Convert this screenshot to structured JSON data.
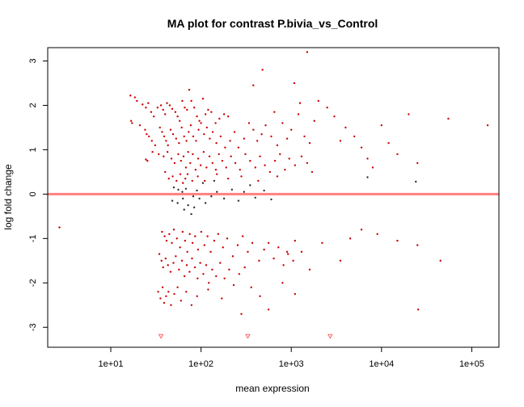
{
  "chart_data": {
    "type": "scatter",
    "title": "MA plot for contrast P.bivia_vs_Control",
    "xlabel": "mean expression",
    "ylabel": "log fold change",
    "x_scale": "log10",
    "xlim": [
      2,
      200000
    ],
    "ylim": [
      -3.45,
      3.3
    ],
    "x_ticks": [
      10,
      100,
      1000,
      10000,
      100000
    ],
    "x_tick_labels": [
      "1e+01",
      "1e+02",
      "1e+03",
      "1e+04",
      "1e+05"
    ],
    "y_ticks": [
      -3,
      -2,
      -1,
      0,
      1,
      2,
      3
    ],
    "y_tick_labels": [
      "-3",
      "-2",
      "-1",
      "0",
      "1",
      "2",
      "3"
    ],
    "hline": {
      "y": 0,
      "color": "#ff7f7f"
    },
    "colors": {
      "significant": "#cc0000",
      "not_significant": "#333333",
      "axis": "#000000"
    },
    "series": [
      {
        "points": [
          [
            16.5,
            2.22
          ],
          [
            18.5,
            2.18
          ],
          [
            19.5,
            2.1
          ],
          [
            22.5,
            2.02
          ],
          [
            24.5,
            1.95
          ],
          [
            26,
            2.05
          ],
          [
            28,
            1.85
          ],
          [
            30,
            1.75
          ],
          [
            33,
            1.95
          ],
          [
            36,
            2.0
          ],
          [
            38,
            1.9
          ],
          [
            40,
            1.8
          ],
          [
            42,
            2.05
          ],
          [
            45,
            2.0
          ],
          [
            48,
            1.92
          ],
          [
            52,
            1.85
          ],
          [
            55,
            1.75
          ],
          [
            58,
            1.65
          ],
          [
            62,
            2.1
          ],
          [
            66,
            1.95
          ],
          [
            70,
            1.9
          ],
          [
            74,
            2.35
          ],
          [
            78,
            2.1
          ],
          [
            84,
            1.95
          ],
          [
            90,
            1.75
          ],
          [
            96,
            1.65
          ],
          [
            105,
            2.15
          ],
          [
            112,
            1.8
          ],
          [
            120,
            1.9
          ],
          [
            130,
            1.85
          ],
          [
            145,
            1.6
          ],
          [
            160,
            1.7
          ],
          [
            180,
            1.8
          ],
          [
            200,
            1.75
          ],
          [
            16.8,
            1.65
          ],
          [
            17.2,
            1.6
          ],
          [
            21,
            1.55
          ],
          [
            24,
            1.45
          ],
          [
            25,
            1.35
          ],
          [
            26.5,
            1.3
          ],
          [
            28.5,
            1.2
          ],
          [
            31,
            1.1
          ],
          [
            35,
            1.5
          ],
          [
            37,
            1.4
          ],
          [
            39,
            1.3
          ],
          [
            41,
            1.2
          ],
          [
            43,
            1.1
          ],
          [
            46,
            1.45
          ],
          [
            49,
            1.35
          ],
          [
            53,
            1.25
          ],
          [
            57,
            1.15
          ],
          [
            61,
            1.5
          ],
          [
            65,
            1.3
          ],
          [
            69,
            1.2
          ],
          [
            73,
            1.4
          ],
          [
            77,
            1.55
          ],
          [
            82,
            1.3
          ],
          [
            88,
            1.2
          ],
          [
            94,
            1.45
          ],
          [
            100,
            1.6
          ],
          [
            108,
            1.35
          ],
          [
            116,
            1.5
          ],
          [
            125,
            1.25
          ],
          [
            135,
            1.4
          ],
          [
            148,
            1.15
          ],
          [
            165,
            1.3
          ],
          [
            185,
            1.05
          ],
          [
            210,
            1.2
          ],
          [
            235,
            1.4
          ],
          [
            260,
            1.05
          ],
          [
            300,
            1.25
          ],
          [
            340,
            1.6
          ],
          [
            380,
            1.45
          ],
          [
            420,
            1.2
          ],
          [
            470,
            1.35
          ],
          [
            520,
            1.55
          ],
          [
            600,
            1.3
          ],
          [
            700,
            1.1
          ],
          [
            800,
            1.6
          ],
          [
            900,
            1.25
          ],
          [
            1000,
            1.45
          ],
          [
            1200,
            1.8
          ],
          [
            1400,
            1.3
          ],
          [
            1600,
            1.15
          ],
          [
            1800,
            1.65
          ],
          [
            24.5,
            0.78
          ],
          [
            25.5,
            0.75
          ],
          [
            29,
            0.95
          ],
          [
            34,
            0.9
          ],
          [
            38.5,
            0.85
          ],
          [
            42.5,
            0.95
          ],
          [
            47,
            0.8
          ],
          [
            51,
            0.7
          ],
          [
            56,
            0.9
          ],
          [
            60,
            0.75
          ],
          [
            64,
            0.85
          ],
          [
            68,
            0.6
          ],
          [
            72,
            0.95
          ],
          [
            76,
            0.7
          ],
          [
            81,
            0.9
          ],
          [
            87,
            0.55
          ],
          [
            93,
            0.8
          ],
          [
            99,
            0.65
          ],
          [
            107,
            0.95
          ],
          [
            115,
            0.6
          ],
          [
            124,
            0.85
          ],
          [
            134,
            0.7
          ],
          [
            146,
            0.55
          ],
          [
            158,
            0.9
          ],
          [
            172,
            0.75
          ],
          [
            190,
            0.6
          ],
          [
            215,
            0.85
          ],
          [
            240,
            0.7
          ],
          [
            270,
            0.55
          ],
          [
            310,
            0.9
          ],
          [
            350,
            0.75
          ],
          [
            400,
            0.6
          ],
          [
            450,
            0.85
          ],
          [
            510,
            0.65
          ],
          [
            580,
            0.5
          ],
          [
            660,
            0.75
          ],
          [
            750,
            0.9
          ],
          [
            850,
            0.55
          ],
          [
            950,
            0.8
          ],
          [
            1100,
            0.65
          ],
          [
            1300,
            0.85
          ],
          [
            1500,
            0.7
          ],
          [
            1700,
            0.5
          ],
          [
            40,
            0.5
          ],
          [
            44,
            0.35
          ],
          [
            48.5,
            0.4
          ],
          [
            53.5,
            0.3
          ],
          [
            59,
            0.45
          ],
          [
            63,
            0.25
          ],
          [
            67,
            0.35
          ],
          [
            71,
            0.45
          ],
          [
            80,
            0.3
          ],
          [
            92,
            0.4
          ],
          [
            110,
            0.3
          ],
          [
            150,
            0.45
          ],
          [
            200,
            0.35
          ],
          [
            280,
            0.4
          ],
          [
            430,
            0.3
          ],
          [
            700,
            0.4
          ],
          [
            37,
            -0.85
          ],
          [
            39.5,
            -0.95
          ],
          [
            41.5,
            -1.05
          ],
          [
            44.5,
            -0.9
          ],
          [
            47.5,
            -1.1
          ],
          [
            50,
            -0.8
          ],
          [
            54,
            -1.0
          ],
          [
            58.5,
            -1.2
          ],
          [
            62.5,
            -0.85
          ],
          [
            66.5,
            -1.05
          ],
          [
            70.5,
            -1.3
          ],
          [
            75,
            -0.9
          ],
          [
            80.5,
            -1.1
          ],
          [
            86,
            -0.95
          ],
          [
            92.5,
            -1.25
          ],
          [
            100.5,
            -0.85
          ],
          [
            109,
            -1.15
          ],
          [
            118,
            -0.95
          ],
          [
            128,
            -1.3
          ],
          [
            140,
            -1.05
          ],
          [
            155,
            -0.9
          ],
          [
            175,
            -1.2
          ],
          [
            195,
            -1.0
          ],
          [
            225,
            -1.4
          ],
          [
            255,
            -1.15
          ],
          [
            290,
            -0.95
          ],
          [
            330,
            -1.3
          ],
          [
            370,
            -1.1
          ],
          [
            440,
            -1.5
          ],
          [
            500,
            -1.25
          ],
          [
            560,
            -1.1
          ],
          [
            640,
            -1.45
          ],
          [
            720,
            -1.2
          ],
          [
            820,
            -1.6
          ],
          [
            920,
            -1.35
          ],
          [
            1050,
            -1.5
          ],
          [
            34.5,
            -1.35
          ],
          [
            36.5,
            -1.5
          ],
          [
            38,
            -1.65
          ],
          [
            40.5,
            -1.45
          ],
          [
            43,
            -1.6
          ],
          [
            46,
            -1.75
          ],
          [
            49.5,
            -1.55
          ],
          [
            52.5,
            -1.4
          ],
          [
            57,
            -1.7
          ],
          [
            61.5,
            -1.5
          ],
          [
            65.5,
            -1.85
          ],
          [
            69.5,
            -1.6
          ],
          [
            74.5,
            -1.75
          ],
          [
            79.5,
            -1.45
          ],
          [
            85.5,
            -1.65
          ],
          [
            91.5,
            -1.9
          ],
          [
            98,
            -1.55
          ],
          [
            106,
            -1.8
          ],
          [
            114,
            -1.6
          ],
          [
            122,
            -2.0
          ],
          [
            133,
            -1.7
          ],
          [
            147,
            -1.85
          ],
          [
            163,
            -1.55
          ],
          [
            182,
            -1.9
          ],
          [
            205,
            -1.7
          ],
          [
            230,
            -2.05
          ],
          [
            265,
            -1.8
          ],
          [
            305,
            -1.65
          ],
          [
            360,
            -2.1
          ],
          [
            33.5,
            -2.2
          ],
          [
            35.5,
            -2.35
          ],
          [
            37.5,
            -2.1
          ],
          [
            39,
            -2.45
          ],
          [
            41,
            -2.3
          ],
          [
            43.5,
            -2.2
          ],
          [
            46.5,
            -2.5
          ],
          [
            50.5,
            -2.25
          ],
          [
            55,
            -2.1
          ],
          [
            60,
            -2.4
          ],
          [
            68.5,
            -2.2
          ],
          [
            78.5,
            -2.5
          ],
          [
            90.5,
            -2.3
          ],
          [
            120,
            -2.15
          ],
          [
            170,
            -2.35
          ],
          [
            1080,
            2.5
          ],
          [
            1250,
            2.05
          ],
          [
            1500,
            3.2
          ],
          [
            2000,
            2.1
          ],
          [
            2500,
            1.95
          ],
          [
            3000,
            1.75
          ],
          [
            3500,
            1.2
          ],
          [
            4000,
            1.5
          ],
          [
            5000,
            1.3
          ],
          [
            6000,
            1.05
          ],
          [
            7000,
            0.8
          ],
          [
            8000,
            0.6
          ],
          [
            10000,
            1.55
          ],
          [
            12000,
            1.15
          ],
          [
            15000,
            0.9
          ],
          [
            20000,
            1.8
          ],
          [
            25000,
            0.7
          ],
          [
            55000,
            1.7
          ],
          [
            150000,
            1.55
          ],
          [
            1100,
            -1.05
          ],
          [
            1300,
            -1.3
          ],
          [
            1600,
            -1.7
          ],
          [
            2200,
            -1.1
          ],
          [
            3500,
            -1.5
          ],
          [
            4500,
            -1.0
          ],
          [
            6000,
            -0.8
          ],
          [
            9000,
            -0.9
          ],
          [
            15000,
            -1.05
          ],
          [
            25000,
            -1.15
          ],
          [
            25500,
            -2.6
          ],
          [
            45000,
            -1.5
          ],
          [
            2.7,
            -0.75
          ],
          [
            800,
            -2.0
          ],
          [
            1100,
            -2.25
          ],
          [
            900,
            -1.3
          ],
          [
            560,
            -2.6
          ],
          [
            450,
            -2.3
          ],
          [
            280,
            -2.7
          ],
          [
            480,
            2.8
          ],
          [
            380,
            2.45
          ],
          [
            650,
            1.85
          ]
        ],
        "color": "#cc0000"
      },
      {
        "points": [
          [
            50,
            0.15
          ],
          [
            56,
            0.1
          ],
          [
            62,
            0.05
          ],
          [
            68,
            0.12
          ],
          [
            74,
            0.0
          ],
          [
            82,
            -0.05
          ],
          [
            90,
            0.08
          ],
          [
            48,
            -0.15
          ],
          [
            55,
            -0.2
          ],
          [
            63,
            -0.1
          ],
          [
            72,
            -0.25
          ],
          [
            84,
            -0.3
          ],
          [
            96,
            -0.1
          ],
          [
            112,
            -0.2
          ],
          [
            130,
            -0.05
          ],
          [
            150,
            0.05
          ],
          [
            180,
            -0.1
          ],
          [
            220,
            0.1
          ],
          [
            260,
            -0.15
          ],
          [
            300,
            0.05
          ],
          [
            350,
            0.2
          ],
          [
            400,
            -0.08
          ],
          [
            500,
            0.08
          ],
          [
            600,
            -0.12
          ],
          [
            7000,
            0.38
          ],
          [
            24000,
            0.28
          ],
          [
            65,
            -0.35
          ],
          [
            78,
            -0.45
          ],
          [
            105,
            0.25
          ],
          [
            140,
            0.3
          ]
        ],
        "color": "#333333"
      },
      {
        "marker": "triangle-down",
        "color": "#ff6666",
        "points": [
          [
            36,
            -3.2
          ],
          [
            330,
            -3.2
          ],
          [
            2700,
            -3.2
          ]
        ]
      }
    ]
  }
}
